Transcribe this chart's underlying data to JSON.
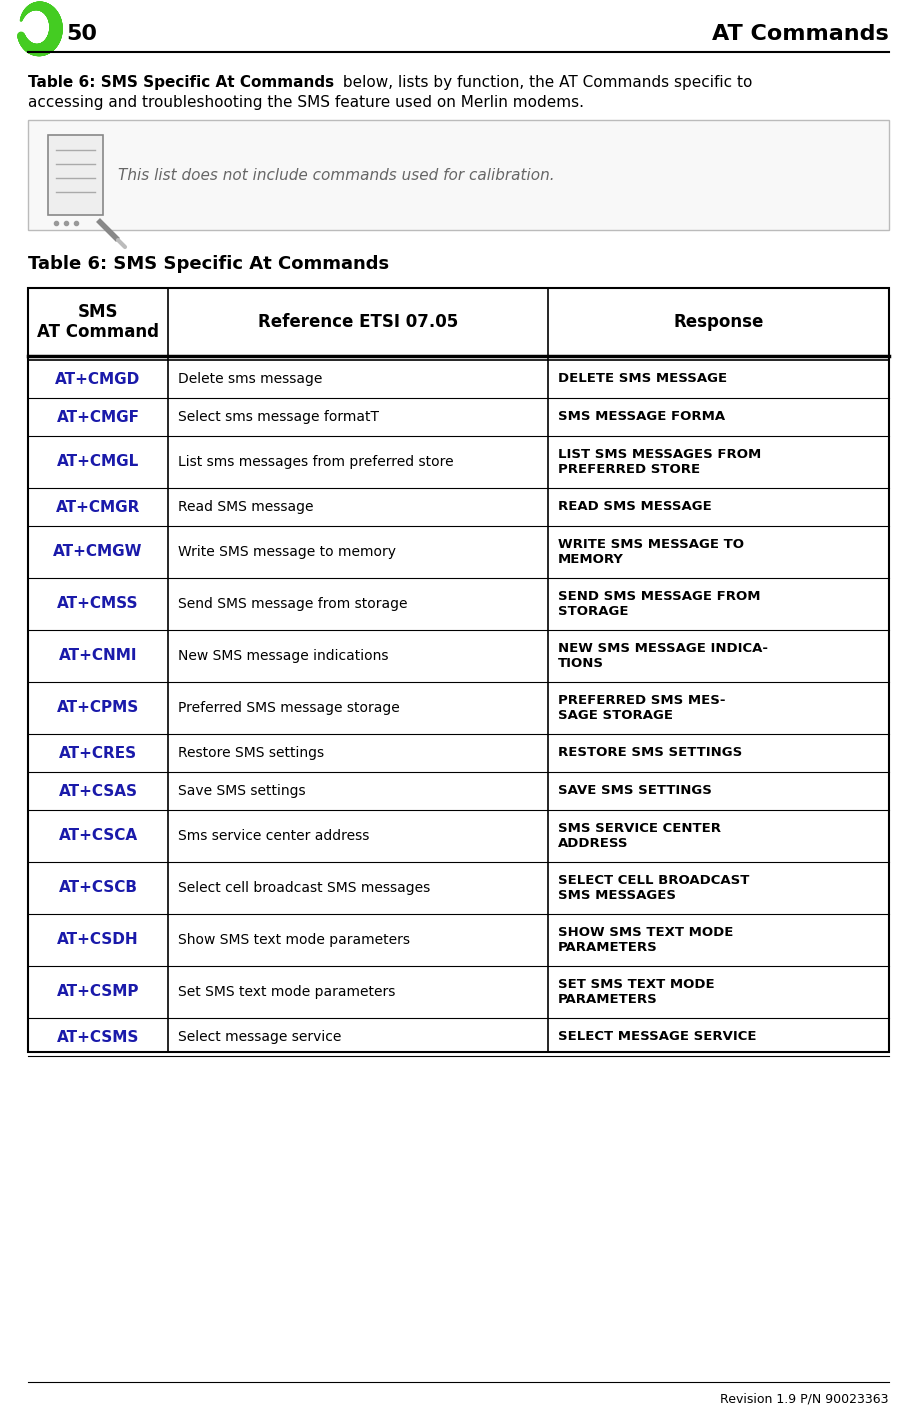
{
  "page_number": "50",
  "page_title": "AT Commands",
  "intro_bold": "Table 6: SMS Specific At Commands",
  "intro_rest": " below, lists by function, the AT Commands specific to\naccessing and troubleshooting the SMS feature used on Merlin modems.",
  "note_italic": "This list does not include commands used for calibration.",
  "table_title": "Table 6: SMS Specific At Commands",
  "header": [
    "SMS\nAT Command",
    "Reference ETSI 07.05",
    "Response"
  ],
  "rows": [
    [
      "AT+CMGD",
      "Delete sms message",
      "DELETE SMS MESSAGE"
    ],
    [
      "AT+CMGF",
      "Select sms message formatT",
      "SMS MESSAGE FORMA"
    ],
    [
      "AT+CMGL",
      "List sms messages from preferred store",
      "LIST SMS MESSAGES FROM\nPREFERRED STORE"
    ],
    [
      "AT+CMGR",
      "Read SMS message",
      "READ SMS MESSAGE"
    ],
    [
      "AT+CMGW",
      "Write SMS message to memory",
      "WRITE SMS MESSAGE TO\nMEMORY"
    ],
    [
      "AT+CMSS",
      "Send SMS message from storage",
      "SEND SMS MESSAGE FROM\nSTORAGE"
    ],
    [
      "AT+CNMI",
      "New SMS message indications",
      "NEW SMS MESSAGE INDICA-\nTIONS"
    ],
    [
      "AT+CPMS",
      "Preferred SMS message storage",
      "PREFERRED SMS MES-\nSAGE STORAGE"
    ],
    [
      "AT+CRES",
      "Restore SMS settings",
      "RESTORE SMS SETTINGS"
    ],
    [
      "AT+CSAS",
      "Save SMS settings",
      "SAVE SMS SETTINGS"
    ],
    [
      "AT+CSCA",
      "Sms service center address",
      "SMS SERVICE CENTER\nADDRESS"
    ],
    [
      "AT+CSCB",
      "Select cell broadcast SMS messages",
      "SELECT CELL BROADCAST\nSMS MESSAGES"
    ],
    [
      "AT+CSDH",
      "Show SMS text mode parameters",
      "SHOW SMS TEXT MODE\nPARAMETERS"
    ],
    [
      "AT+CSMP",
      "Set SMS text mode parameters",
      "SET SMS TEXT MODE\nPARAMETERS"
    ],
    [
      "AT+CSMS",
      "Select message service",
      "SELECT MESSAGE SERVICE"
    ]
  ],
  "row_double": [
    2,
    4,
    5,
    6,
    7,
    10,
    11,
    12,
    13
  ],
  "cmd_color": "#1a1aaa",
  "bg_color": "#ffffff",
  "footer_text": "Revision 1.9 P/N 90023363"
}
